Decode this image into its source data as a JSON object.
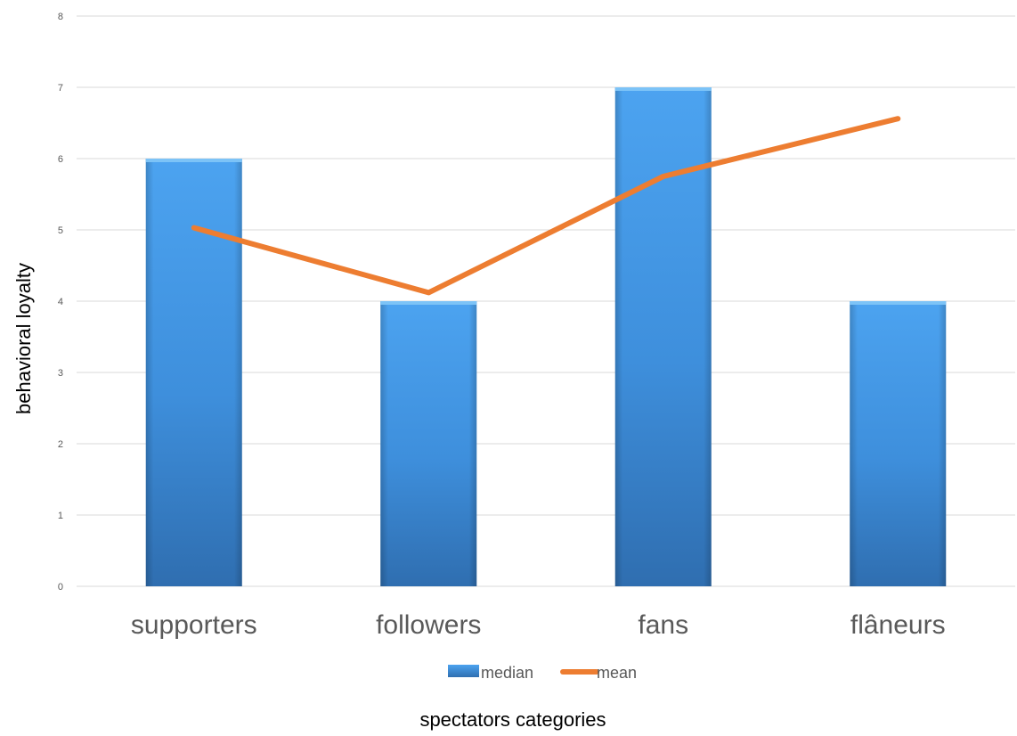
{
  "chart_data": {
    "type": "bar",
    "categories": [
      "supporters",
      "followers",
      "fans",
      "flâneurs"
    ],
    "series": [
      {
        "name": "median",
        "type": "bar",
        "values": [
          6,
          4,
          7,
          4
        ]
      },
      {
        "name": "mean",
        "type": "line",
        "values": [
          5.03,
          4.12,
          5.75,
          6.56
        ]
      }
    ],
    "title": "",
    "xlabel": "spectators categories",
    "ylabel": "behavioral loyalty",
    "ylim": [
      0,
      8
    ],
    "yticks": [
      "0",
      "1",
      "2",
      "3",
      "4",
      "5",
      "6",
      "7",
      "8"
    ],
    "grid": true,
    "legend": "bottom",
    "colors": {
      "bar": "#4a9ce8",
      "bar_dark": "#2f6fb3",
      "line": "#ed7d31",
      "grid": "#d9d9d9"
    }
  }
}
